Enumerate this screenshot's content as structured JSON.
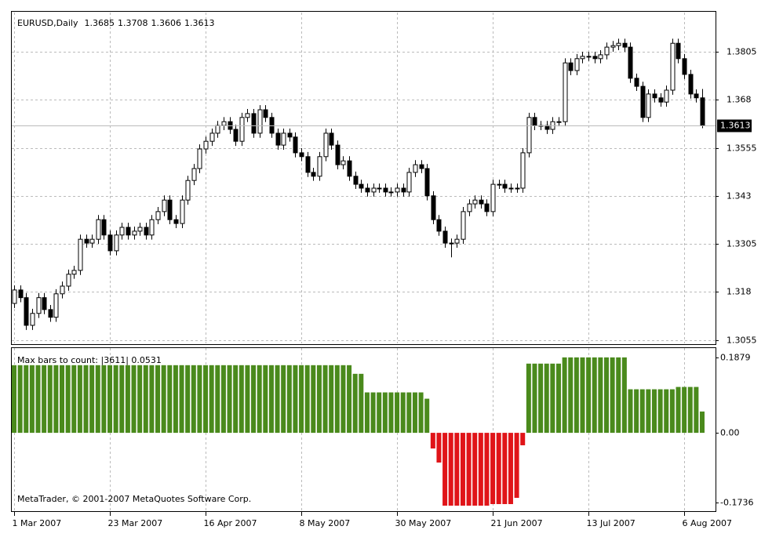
{
  "chart_data": [
    {
      "type": "candlestick",
      "symbol": "EURUSD,Daily",
      "ylim": [
        1.3046,
        1.3907
      ],
      "yticks": [
        1.3805,
        1.368,
        1.3555,
        1.343,
        1.3305,
        1.318,
        1.3055
      ],
      "grid": true,
      "up_color": "#ffffff",
      "down_color": "#000000",
      "xticks": [
        {
          "value": 0,
          "label": "1 Mar 2007"
        },
        {
          "value": 16,
          "label": "23 Mar 2007"
        },
        {
          "value": 32,
          "label": "16 Apr 2007"
        },
        {
          "value": 48,
          "label": "8 May 2007"
        },
        {
          "value": 64,
          "label": "30 May 2007"
        },
        {
          "value": 80,
          "label": "21 Jun 2007"
        },
        {
          "value": 96,
          "label": "13 Jul 2007"
        },
        {
          "value": 112,
          "label": "6 Aug 2007"
        }
      ],
      "open": [
        1.315,
        1.3185,
        1.3165,
        1.3093,
        1.3124,
        1.3165,
        1.3134,
        1.3114,
        1.3175,
        1.3195,
        1.3226,
        1.3236,
        1.3317,
        1.3307,
        1.3317,
        1.3368,
        1.3328,
        1.3287,
        1.3328,
        1.3348,
        1.3328,
        1.3338,
        1.3348,
        1.3328,
        1.3368,
        1.3389,
        1.3419,
        1.3368,
        1.3358,
        1.3419,
        1.347,
        1.3501,
        1.3552,
        1.3572,
        1.3593,
        1.3613,
        1.3623,
        1.3603,
        1.3572,
        1.3634,
        1.3644,
        1.3593,
        1.3654,
        1.3634,
        1.3593,
        1.3562,
        1.3593,
        1.3583,
        1.3542,
        1.3532,
        1.3491,
        1.3481,
        1.3532,
        1.3593,
        1.3562,
        1.3511,
        1.3521,
        1.3481,
        1.346,
        1.345,
        1.344,
        1.345,
        1.345,
        1.344,
        1.344,
        1.345,
        1.344,
        1.3491,
        1.3511,
        1.3501,
        1.343,
        1.3368,
        1.3338,
        1.3307,
        1.3307,
        1.3317,
        1.3389,
        1.3409,
        1.3419,
        1.3409,
        1.3389,
        1.346,
        1.346,
        1.345,
        1.345,
        1.345,
        1.3542,
        1.3634,
        1.3613,
        1.3613,
        1.3603,
        1.3623,
        1.3623,
        1.3776,
        1.3756,
        1.3787,
        1.3793,
        1.3793,
        1.3787,
        1.3797,
        1.3817,
        1.3821,
        1.3827,
        1.3817,
        1.3736,
        1.3715,
        1.3634,
        1.3695,
        1.3685,
        1.3674,
        1.3705,
        1.3827,
        1.3787,
        1.3746,
        1.3695,
        1.3685
      ],
      "high": [
        1.3197,
        1.3197,
        1.3177,
        1.3136,
        1.3177,
        1.3177,
        1.3146,
        1.3187,
        1.3207,
        1.3238,
        1.3248,
        1.3329,
        1.3329,
        1.3329,
        1.338,
        1.338,
        1.334,
        1.334,
        1.336,
        1.336,
        1.335,
        1.336,
        1.336,
        1.338,
        1.3401,
        1.3431,
        1.3431,
        1.338,
        1.3431,
        1.3482,
        1.3513,
        1.3564,
        1.3584,
        1.3605,
        1.3625,
        1.3635,
        1.3635,
        1.3615,
        1.3646,
        1.3656,
        1.3656,
        1.3666,
        1.3666,
        1.3646,
        1.3605,
        1.3605,
        1.3605,
        1.3595,
        1.3554,
        1.3544,
        1.3503,
        1.3544,
        1.3605,
        1.3605,
        1.3574,
        1.3533,
        1.3533,
        1.3493,
        1.3472,
        1.3462,
        1.3462,
        1.3462,
        1.3462,
        1.3452,
        1.3462,
        1.3462,
        1.3503,
        1.3523,
        1.3523,
        1.3513,
        1.3442,
        1.338,
        1.335,
        1.3319,
        1.3329,
        1.3401,
        1.3421,
        1.3431,
        1.3431,
        1.3421,
        1.3472,
        1.3472,
        1.3472,
        1.3462,
        1.3462,
        1.3554,
        1.3646,
        1.3646,
        1.3625,
        1.3625,
        1.3635,
        1.3635,
        1.3788,
        1.3788,
        1.3799,
        1.3805,
        1.3805,
        1.3805,
        1.3809,
        1.3829,
        1.3833,
        1.3839,
        1.3839,
        1.3829,
        1.3748,
        1.3727,
        1.3707,
        1.3707,
        1.3697,
        1.3717,
        1.3839,
        1.3839,
        1.3799,
        1.3758,
        1.3707,
        1.3708
      ],
      "low": [
        1.3138,
        1.3153,
        1.3081,
        1.3081,
        1.3112,
        1.3122,
        1.3102,
        1.3102,
        1.3163,
        1.3183,
        1.3214,
        1.3224,
        1.3295,
        1.3295,
        1.3305,
        1.3316,
        1.3275,
        1.3275,
        1.3316,
        1.3316,
        1.3316,
        1.3326,
        1.3316,
        1.3316,
        1.3356,
        1.3377,
        1.3356,
        1.3346,
        1.3346,
        1.3407,
        1.3458,
        1.3489,
        1.354,
        1.356,
        1.3581,
        1.3601,
        1.3591,
        1.356,
        1.356,
        1.3622,
        1.3581,
        1.3581,
        1.3622,
        1.3581,
        1.355,
        1.355,
        1.3571,
        1.353,
        1.352,
        1.3479,
        1.3469,
        1.3469,
        1.352,
        1.355,
        1.3499,
        1.3499,
        1.3469,
        1.3448,
        1.3438,
        1.3428,
        1.3428,
        1.3438,
        1.3428,
        1.3428,
        1.3428,
        1.3428,
        1.3428,
        1.3479,
        1.3489,
        1.3418,
        1.3356,
        1.3326,
        1.3295,
        1.327,
        1.3295,
        1.3305,
        1.3377,
        1.3397,
        1.3397,
        1.3377,
        1.3377,
        1.3448,
        1.3438,
        1.3438,
        1.3438,
        1.3438,
        1.353,
        1.3601,
        1.3601,
        1.3591,
        1.3591,
        1.3611,
        1.3611,
        1.3744,
        1.3744,
        1.3775,
        1.3781,
        1.3775,
        1.3775,
        1.3785,
        1.3805,
        1.3809,
        1.3805,
        1.3724,
        1.3703,
        1.3622,
        1.3622,
        1.3673,
        1.3662,
        1.3662,
        1.3693,
        1.3775,
        1.3734,
        1.3683,
        1.3673,
        1.3606
      ],
      "close": [
        1.3185,
        1.3165,
        1.3093,
        1.3124,
        1.3165,
        1.3134,
        1.3114,
        1.3175,
        1.3195,
        1.3226,
        1.3236,
        1.3317,
        1.3307,
        1.3317,
        1.3368,
        1.3328,
        1.3287,
        1.3328,
        1.3348,
        1.3328,
        1.3338,
        1.3348,
        1.3328,
        1.3368,
        1.3389,
        1.3419,
        1.3368,
        1.3358,
        1.3419,
        1.347,
        1.3501,
        1.3552,
        1.3572,
        1.3593,
        1.3613,
        1.3623,
        1.3603,
        1.3572,
        1.3634,
        1.3644,
        1.3593,
        1.3654,
        1.3634,
        1.3593,
        1.3562,
        1.3593,
        1.3583,
        1.3542,
        1.3532,
        1.3491,
        1.3481,
        1.3532,
        1.3593,
        1.3562,
        1.3511,
        1.3521,
        1.3481,
        1.346,
        1.345,
        1.344,
        1.345,
        1.345,
        1.344,
        1.344,
        1.345,
        1.344,
        1.3491,
        1.3511,
        1.3501,
        1.343,
        1.3368,
        1.3338,
        1.3307,
        1.3307,
        1.3317,
        1.3389,
        1.3409,
        1.3419,
        1.3409,
        1.3389,
        1.346,
        1.346,
        1.345,
        1.345,
        1.345,
        1.3542,
        1.3634,
        1.3613,
        1.3613,
        1.3603,
        1.3623,
        1.3623,
        1.3776,
        1.3756,
        1.3787,
        1.3793,
        1.3793,
        1.3787,
        1.3797,
        1.3817,
        1.3821,
        1.3827,
        1.3817,
        1.3736,
        1.3715,
        1.3634,
        1.3695,
        1.3685,
        1.3674,
        1.3705,
        1.3827,
        1.3787,
        1.3746,
        1.3695,
        1.3685,
        1.3613
      ]
    },
    {
      "type": "bar",
      "label": "Max bars to count: |3611|  0.0531",
      "ylim": [
        -0.1951,
        0.2111
      ],
      "yticks": [
        0.1879,
        {
          "value": 0,
          "label": "0.00"
        },
        -0.1736
      ],
      "positive_color": "#4a8a1c",
      "negative_color": "#e01418",
      "values": [
        0.1685,
        0.1685,
        0.1685,
        0.1685,
        0.1685,
        0.1685,
        0.1685,
        0.1685,
        0.1685,
        0.1685,
        0.1685,
        0.1685,
        0.1685,
        0.1685,
        0.1685,
        0.1685,
        0.1685,
        0.1685,
        0.1685,
        0.1685,
        0.1685,
        0.1685,
        0.1685,
        0.1685,
        0.1685,
        0.1685,
        0.1685,
        0.1685,
        0.1685,
        0.1685,
        0.1685,
        0.1685,
        0.1685,
        0.1685,
        0.1685,
        0.1685,
        0.1685,
        0.1685,
        0.1685,
        0.1685,
        0.1685,
        0.1685,
        0.1685,
        0.1685,
        0.1685,
        0.1685,
        0.1685,
        0.1685,
        0.1685,
        0.1685,
        0.1685,
        0.1685,
        0.1685,
        0.1685,
        0.1685,
        0.1685,
        0.1685,
        0.147,
        0.147,
        0.1007,
        0.1007,
        0.1007,
        0.1007,
        0.1007,
        0.1007,
        0.1007,
        0.1007,
        0.1007,
        0.1007,
        0.085,
        -0.039,
        -0.074,
        -0.1814,
        -0.1814,
        -0.1814,
        -0.1814,
        -0.1814,
        -0.1814,
        -0.1814,
        -0.1814,
        -0.1775,
        -0.1775,
        -0.1775,
        -0.1775,
        -0.162,
        -0.031,
        0.1724,
        0.1724,
        0.1724,
        0.1724,
        0.1724,
        0.1724,
        0.1879,
        0.1879,
        0.1879,
        0.1879,
        0.1879,
        0.1879,
        0.1879,
        0.1879,
        0.1879,
        0.1879,
        0.1879,
        0.1085,
        0.1085,
        0.1085,
        0.1085,
        0.1085,
        0.1085,
        0.1085,
        0.1085,
        0.1143,
        0.1143,
        0.1143,
        0.1143,
        0.0531
      ]
    }
  ],
  "footer": "MetaTrader, © 2001-2007 MetaQuotes Software Corp."
}
